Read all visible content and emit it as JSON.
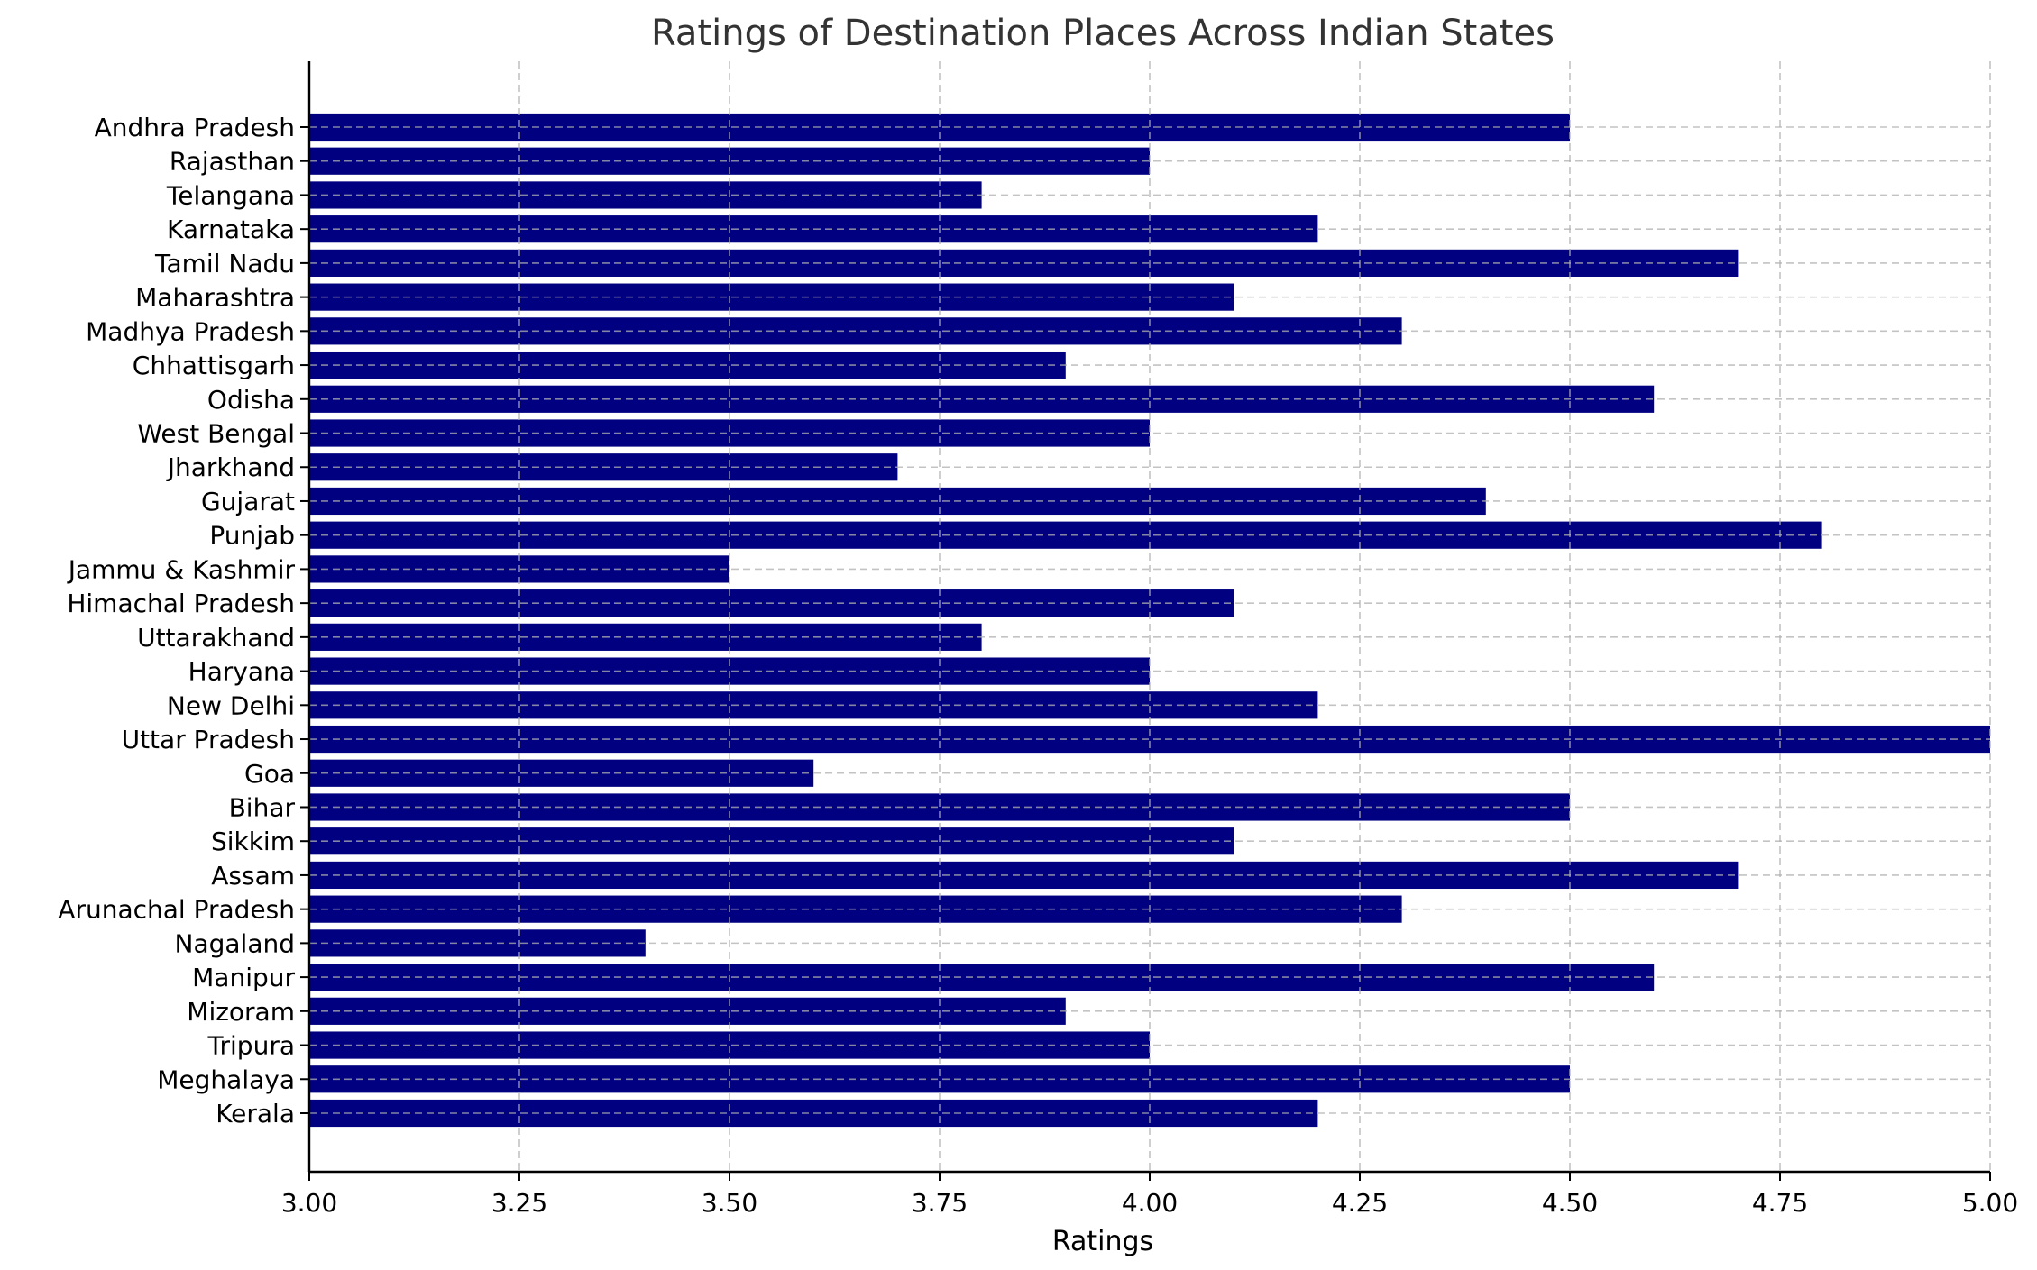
{
  "chart_data": {
    "type": "bar",
    "orientation": "horizontal",
    "title": "Ratings of Destination Places Across Indian States",
    "xlabel": "Ratings",
    "ylabel": "",
    "xlim": [
      3.0,
      5.0
    ],
    "xticks": [
      "3.00",
      "3.25",
      "3.50",
      "3.75",
      "4.00",
      "4.25",
      "4.50",
      "4.75",
      "5.00"
    ],
    "categories": [
      "Andhra Pradesh",
      "Rajasthan",
      "Telangana",
      "Karnataka",
      "Tamil Nadu",
      "Maharashtra",
      "Madhya Pradesh",
      "Chhattisgarh",
      "Odisha",
      "West Bengal",
      "Jharkhand",
      "Gujarat",
      "Punjab",
      "Jammu & Kashmir",
      "Himachal Pradesh",
      "Uttarakhand",
      "Haryana",
      "New Delhi",
      "Uttar Pradesh",
      "Goa",
      "Bihar",
      "Sikkim",
      "Assam",
      "Arunachal Pradesh",
      "Nagaland",
      "Manipur",
      "Mizoram",
      "Tripura",
      "Meghalaya",
      "Kerala"
    ],
    "values": [
      4.5,
      4.0,
      3.8,
      4.2,
      4.7,
      4.1,
      4.3,
      3.9,
      4.6,
      4.0,
      3.7,
      4.4,
      4.8,
      3.5,
      4.1,
      3.8,
      4.0,
      4.2,
      5.0,
      3.6,
      4.5,
      4.1,
      4.7,
      4.3,
      3.4,
      4.6,
      3.9,
      4.0,
      4.5,
      4.2
    ],
    "grid": true,
    "bar_color": "#000080",
    "legend": "none"
  }
}
